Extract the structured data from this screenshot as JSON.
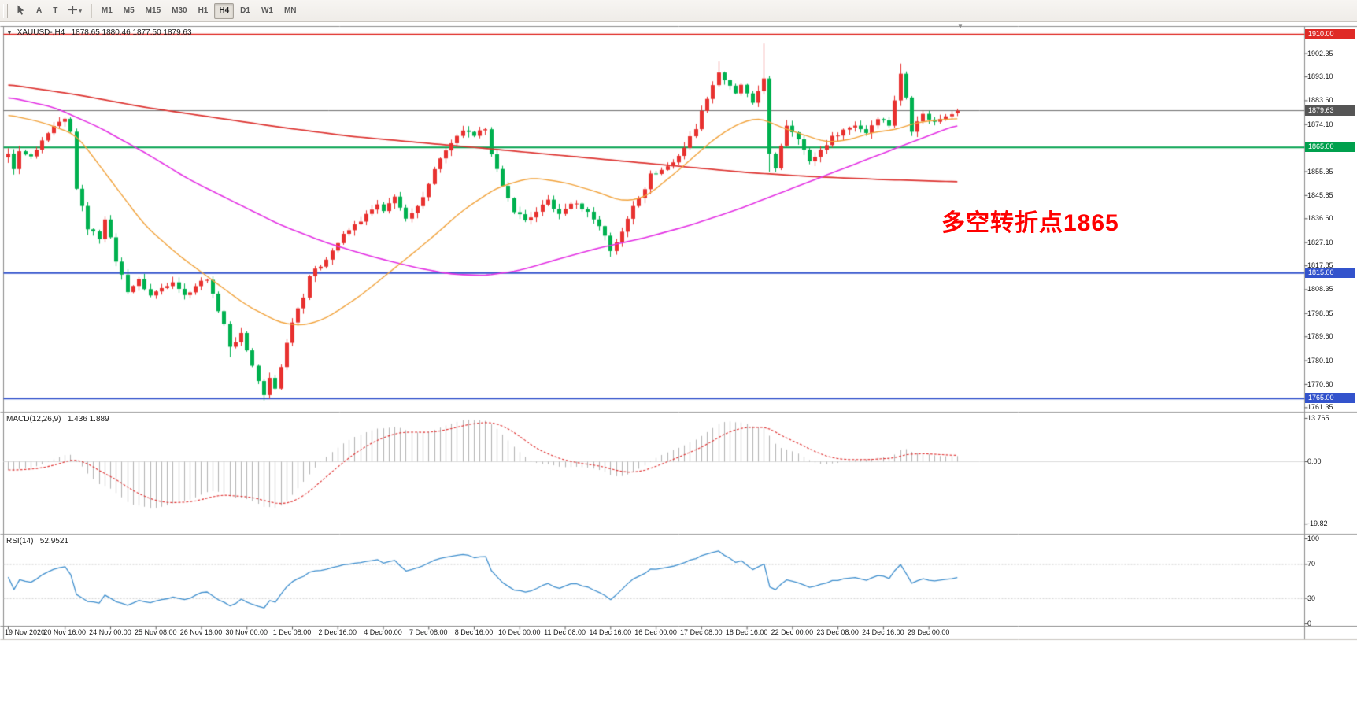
{
  "toolbar": {
    "tools": [
      {
        "id": "cursor",
        "icon": "cursor"
      },
      {
        "id": "text",
        "label": "A"
      },
      {
        "id": "text-label",
        "label": "T"
      },
      {
        "id": "crosshair",
        "icon": "crosshair",
        "dropdown": true
      }
    ],
    "timeframes": [
      "M1",
      "M5",
      "M15",
      "M30",
      "H1",
      "H4",
      "D1",
      "W1",
      "MN"
    ],
    "active_timeframe": "H4"
  },
  "header": {
    "symbol": "XAUUSD-,H4",
    "ohlc_text": "1878.65 1880.46 1877.50 1879.63"
  },
  "annotation": {
    "text": "多空转折点1865",
    "color": "#ff0000"
  },
  "price_axis": {
    "ticks": [
      "1902.35",
      "1893.10",
      "1883.60",
      "1874.10",
      "1855.35",
      "1845.85",
      "1836.60",
      "1827.10",
      "1817.85",
      "1808.35",
      "1798.85",
      "1789.60",
      "1780.10",
      "1770.60",
      "1761.35"
    ],
    "badges": [
      {
        "label": "1910.00",
        "price": 1910.0,
        "color": "#df2a26"
      },
      {
        "label": "1879.63",
        "price": 1879.63,
        "color": "#555555"
      },
      {
        "label": "1865.00",
        "price": 1865.0,
        "color": "#00a04d"
      },
      {
        "label": "1815.00",
        "price": 1815.0,
        "color": "#3353cc"
      },
      {
        "label": "1765.00",
        "price": 1765.0,
        "color": "#3353cc"
      }
    ]
  },
  "chart_data": {
    "type": "candlestick",
    "title": "XAUUSD-,H4",
    "symbol": "XAUUSD",
    "timeframe": "H4",
    "ylim": [
      1760.5,
      1913.2
    ],
    "bars": 168,
    "candle_colors": {
      "up": "#e8312f",
      "down": "#00b14f"
    },
    "last_candle": {
      "open": 1878.65,
      "high": 1880.46,
      "low": 1877.5,
      "close": 1879.63
    },
    "hlines": [
      {
        "price": 1910.0,
        "color": "#df2a26",
        "width": 2
      },
      {
        "price": 1865.0,
        "color": "#00a04d",
        "width": 2
      },
      {
        "price": 1815.0,
        "color": "#3353cc",
        "width": 2
      },
      {
        "price": 1765.0,
        "color": "#3353cc",
        "width": 2
      }
    ],
    "bid_line": {
      "price": 1879.63,
      "color": "#6b6b6b"
    },
    "close_anchors": [
      [
        0,
        1862
      ],
      [
        1,
        1857
      ],
      [
        2,
        1863
      ],
      [
        4,
        1861
      ],
      [
        6,
        1867
      ],
      [
        8,
        1873
      ],
      [
        10,
        1876
      ],
      [
        11,
        1871
      ],
      [
        12,
        1849
      ],
      [
        14,
        1833
      ],
      [
        16,
        1829
      ],
      [
        17,
        1837
      ],
      [
        19,
        1820
      ],
      [
        21,
        1808
      ],
      [
        23,
        1812
      ],
      [
        25,
        1806
      ],
      [
        27,
        1809
      ],
      [
        29,
        1812
      ],
      [
        31,
        1806
      ],
      [
        33,
        1810
      ],
      [
        35,
        1813
      ],
      [
        36,
        1806
      ],
      [
        38,
        1795
      ],
      [
        39,
        1785
      ],
      [
        41,
        1791
      ],
      [
        43,
        1778
      ],
      [
        45,
        1766
      ],
      [
        46,
        1773
      ],
      [
        47,
        1769
      ],
      [
        48,
        1778
      ],
      [
        50,
        1796
      ],
      [
        52,
        1806
      ],
      [
        53,
        1814
      ],
      [
        55,
        1818
      ],
      [
        57,
        1824
      ],
      [
        59,
        1830
      ],
      [
        61,
        1834
      ],
      [
        63,
        1838
      ],
      [
        65,
        1842
      ],
      [
        66,
        1839
      ],
      [
        68,
        1846
      ],
      [
        69,
        1841
      ],
      [
        70,
        1836
      ],
      [
        72,
        1841
      ],
      [
        74,
        1851
      ],
      [
        76,
        1861
      ],
      [
        78,
        1866
      ],
      [
        80,
        1872
      ],
      [
        82,
        1869
      ],
      [
        84,
        1873
      ],
      [
        85,
        1863
      ],
      [
        87,
        1849
      ],
      [
        89,
        1840
      ],
      [
        91,
        1836
      ],
      [
        93,
        1839
      ],
      [
        95,
        1844
      ],
      [
        97,
        1838
      ],
      [
        99,
        1843
      ],
      [
        101,
        1841
      ],
      [
        103,
        1837
      ],
      [
        105,
        1830
      ],
      [
        106,
        1824
      ],
      [
        108,
        1831
      ],
      [
        110,
        1842
      ],
      [
        112,
        1849
      ],
      [
        113,
        1854
      ],
      [
        115,
        1856
      ],
      [
        117,
        1859
      ],
      [
        119,
        1865
      ],
      [
        121,
        1873
      ],
      [
        123,
        1885
      ],
      [
        125,
        1895
      ],
      [
        126,
        1892
      ],
      [
        128,
        1886
      ],
      [
        129,
        1890
      ],
      [
        131,
        1882
      ],
      [
        133,
        1893
      ],
      [
        134,
        1862
      ],
      [
        135,
        1856
      ],
      [
        136,
        1866
      ],
      [
        137,
        1874
      ],
      [
        139,
        1869
      ],
      [
        141,
        1859
      ],
      [
        143,
        1864
      ],
      [
        145,
        1869
      ],
      [
        147,
        1872
      ],
      [
        149,
        1874
      ],
      [
        151,
        1871
      ],
      [
        153,
        1877
      ],
      [
        155,
        1874
      ],
      [
        156,
        1884
      ],
      [
        157,
        1894
      ],
      [
        158,
        1885
      ],
      [
        159,
        1872
      ],
      [
        160,
        1876
      ],
      [
        161,
        1878
      ],
      [
        163,
        1875
      ],
      [
        165,
        1878
      ],
      [
        167,
        1879.63
      ]
    ],
    "wick_overrides": {
      "12": {
        "h": 1872.5
      },
      "39": {
        "l": 1781.5
      },
      "45": {
        "l": 1764.2
      },
      "106": {
        "l": 1821.5
      },
      "125": {
        "h": 1899.2
      },
      "133": {
        "h": 1906.4
      },
      "134": {
        "l": 1855.3
      },
      "157": {
        "h": 1898.4
      }
    },
    "moving_averages": [
      {
        "name": "ma-slow",
        "color": "#dd3330",
        "width": 1.7,
        "anchors": [
          [
            0,
            1890
          ],
          [
            12,
            1886
          ],
          [
            24,
            1881
          ],
          [
            36,
            1877
          ],
          [
            48,
            1873
          ],
          [
            60,
            1869.5
          ],
          [
            72,
            1867
          ],
          [
            82,
            1865
          ],
          [
            94,
            1862.5
          ],
          [
            106,
            1860
          ],
          [
            118,
            1857.5
          ],
          [
            130,
            1855
          ],
          [
            142,
            1853.3
          ],
          [
            154,
            1852.2
          ],
          [
            167,
            1851.3
          ]
        ]
      },
      {
        "name": "ma-medium",
        "color": "#e431e4",
        "width": 1.6,
        "anchors": [
          [
            0,
            1885
          ],
          [
            8,
            1881
          ],
          [
            16,
            1873
          ],
          [
            24,
            1863
          ],
          [
            32,
            1852
          ],
          [
            40,
            1843
          ],
          [
            48,
            1834
          ],
          [
            56,
            1827
          ],
          [
            64,
            1821.5
          ],
          [
            72,
            1817
          ],
          [
            78,
            1814.5
          ],
          [
            84,
            1814
          ],
          [
            90,
            1816
          ],
          [
            96,
            1820
          ],
          [
            104,
            1825
          ],
          [
            112,
            1829
          ],
          [
            120,
            1834
          ],
          [
            128,
            1840
          ],
          [
            136,
            1847
          ],
          [
            144,
            1854
          ],
          [
            152,
            1861
          ],
          [
            160,
            1868
          ],
          [
            167,
            1874
          ]
        ]
      },
      {
        "name": "ma-fast",
        "color": "#f2a33c",
        "width": 1.4,
        "anchors": [
          [
            0,
            1878
          ],
          [
            6,
            1875
          ],
          [
            12,
            1870
          ],
          [
            18,
            1852
          ],
          [
            24,
            1834
          ],
          [
            30,
            1822
          ],
          [
            36,
            1812
          ],
          [
            42,
            1802
          ],
          [
            48,
            1795
          ],
          [
            52,
            1794
          ],
          [
            56,
            1797
          ],
          [
            62,
            1806
          ],
          [
            68,
            1817
          ],
          [
            74,
            1828
          ],
          [
            80,
            1840
          ],
          [
            86,
            1849
          ],
          [
            92,
            1853
          ],
          [
            98,
            1851
          ],
          [
            104,
            1847
          ],
          [
            108,
            1843.5
          ],
          [
            112,
            1845
          ],
          [
            118,
            1856
          ],
          [
            124,
            1868
          ],
          [
            128,
            1874
          ],
          [
            132,
            1877
          ],
          [
            136,
            1873
          ],
          [
            140,
            1870
          ],
          [
            144,
            1867
          ],
          [
            148,
            1868
          ],
          [
            152,
            1871
          ],
          [
            156,
            1872
          ],
          [
            160,
            1875
          ],
          [
            164,
            1876
          ],
          [
            167,
            1876.5
          ]
        ]
      }
    ],
    "x_axis": {
      "labels": [
        [
          0,
          "19 Nov 2020"
        ],
        [
          10,
          "20 Nov 16:00"
        ],
        [
          18,
          "24 Nov 00:00"
        ],
        [
          26,
          "25 Nov 08:00"
        ],
        [
          34,
          "26 Nov 16:00"
        ],
        [
          42,
          "30 Nov 00:00"
        ],
        [
          50,
          "1 Dec 08:00"
        ],
        [
          58,
          "2 Dec 16:00"
        ],
        [
          66,
          "4 Dec 00:00"
        ],
        [
          74,
          "7 Dec 08:00"
        ],
        [
          82,
          "8 Dec 16:00"
        ],
        [
          90,
          "10 Dec 00:00"
        ],
        [
          98,
          "11 Dec 08:00"
        ],
        [
          106,
          "14 Dec 16:00"
        ],
        [
          114,
          "16 Dec 00:00"
        ],
        [
          122,
          "17 Dec 08:00"
        ],
        [
          130,
          "18 Dec 16:00"
        ],
        [
          138,
          "22 Dec 00:00"
        ],
        [
          146,
          "23 Dec 08:00"
        ],
        [
          154,
          "24 Dec 16:00"
        ],
        [
          162,
          "29 Dec 00:00"
        ]
      ]
    },
    "indicators": {
      "macd": {
        "label": "MACD(12,26,9)",
        "values_text": "1.436 1.889",
        "params": [
          12,
          26,
          9
        ],
        "histogram_color": "#b2b2b2",
        "signal_color": "#e03030",
        "axis_labels": [
          {
            "value": 13.765,
            "text": "13.765"
          },
          {
            "value": 0,
            "text": "0.00"
          },
          {
            "value": -19.82,
            "text": "-19.82"
          }
        ],
        "seed": [
          -2.0,
          1.0
        ]
      },
      "rsi": {
        "label": "RSI(14)",
        "value_text": "52.9521",
        "period": 14,
        "line_color": "#3f8fce",
        "levels": [
          70,
          30
        ],
        "axis_labels": [
          {
            "value": 100,
            "text": "100"
          },
          {
            "value": 70,
            "text": "70"
          },
          {
            "value": 30,
            "text": "30"
          },
          {
            "value": 0,
            "text": "0"
          }
        ]
      }
    }
  }
}
